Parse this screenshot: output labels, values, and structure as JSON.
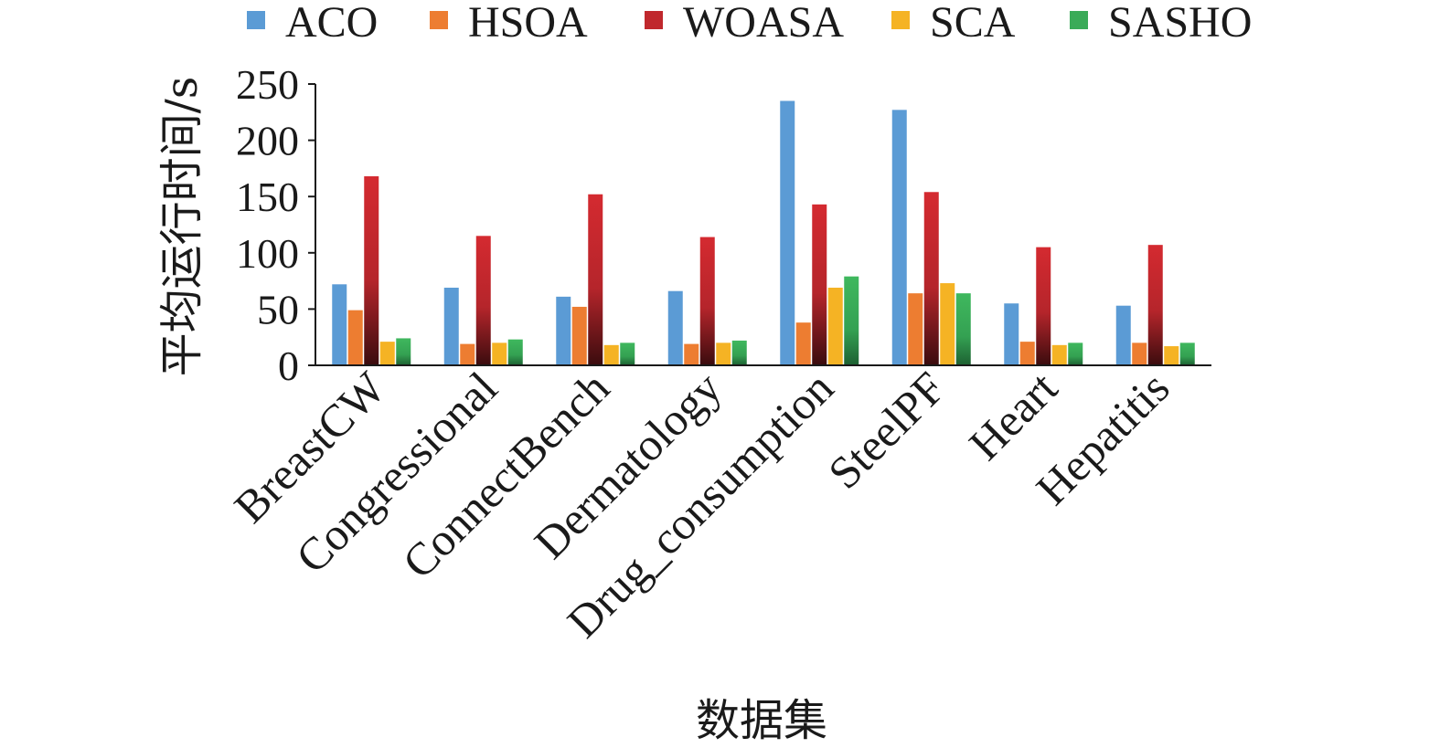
{
  "chart_data": {
    "type": "bar",
    "xlabel": "数据集",
    "ylabel": "平均运行时间/s",
    "ylim": [
      0,
      250
    ],
    "yticks": [
      0,
      50,
      100,
      150,
      200,
      250
    ],
    "legend_position": "top",
    "grid": false,
    "categories": [
      "BreastCW",
      "Congressional",
      "ConnectBench",
      "Dermatology",
      "Drug_consumption",
      "SteelPF",
      "Heart",
      "Hepatitis"
    ],
    "series": [
      {
        "name": "ACO",
        "color": "#5b9bd5",
        "values": [
          72,
          69,
          61,
          66,
          235,
          227,
          55,
          53
        ]
      },
      {
        "name": "HSOA",
        "color": "#ed7d31",
        "values": [
          49,
          19,
          52,
          19,
          38,
          64,
          21,
          20
        ]
      },
      {
        "name": "WOASA",
        "color": "#c0282d",
        "values": [
          168,
          115,
          152,
          114,
          143,
          154,
          105,
          107
        ]
      },
      {
        "name": "SCA",
        "color": "#f5b324",
        "values": [
          21,
          20,
          18,
          20,
          69,
          73,
          18,
          17
        ]
      },
      {
        "name": "SASHO",
        "color": "#3aab58",
        "values": [
          24,
          23,
          20,
          22,
          79,
          64,
          20,
          20
        ]
      }
    ]
  }
}
